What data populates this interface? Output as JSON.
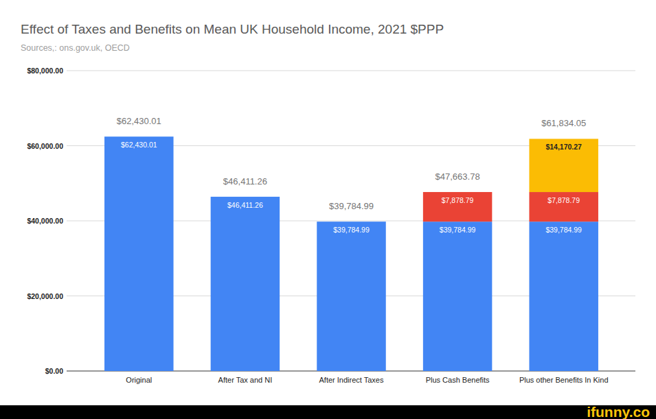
{
  "chart_data": {
    "type": "bar",
    "title": "Effect of Taxes and Benefits on Mean UK Household Income, 2021 $PPP",
    "subtitle": "Sources,: ons.gov.uk, OECD",
    "watermark": "ifunny.co",
    "categories": [
      "Original",
      "After Tax and NI",
      "After Indirect Taxes",
      "Plus Cash Benefits",
      "Plus other Benefits In Kind"
    ],
    "stacked": true,
    "data_labels": true,
    "grid": true,
    "series": [
      {
        "color": "#4285f4",
        "values": [
          62430.01,
          46411.26,
          39784.99,
          39784.99,
          39784.99
        ],
        "value_labels": [
          "$62,430.01",
          "$46,411.26",
          "$39,784.99",
          "$39,784.99",
          "$39,784.99"
        ]
      },
      {
        "color": "#ea4335",
        "values": [
          null,
          null,
          null,
          7878.79,
          7878.79
        ],
        "value_labels": [
          null,
          null,
          null,
          "$7,878.79",
          "$7,878.79"
        ]
      },
      {
        "color": "#fbbc04",
        "values": [
          null,
          null,
          null,
          null,
          14170.27
        ],
        "value_labels": [
          null,
          null,
          null,
          null,
          "$14,170.27"
        ]
      }
    ],
    "totals": [
      62430.01,
      46411.26,
      39784.99,
      47663.78,
      61834.05
    ],
    "total_labels": [
      "$62,430.01",
      "$46,411.26",
      "$39,784.99",
      "$47,663.78",
      "$61,834.05"
    ],
    "ylim": [
      0,
      80000
    ],
    "yticks": [
      {
        "value": 0,
        "label": "$0.00"
      },
      {
        "value": 20000,
        "label": "$20,000.00"
      },
      {
        "value": 40000,
        "label": "$40,000.00"
      },
      {
        "value": 60000,
        "label": "$60,000.00"
      },
      {
        "value": 80000,
        "label": "$80,000.00"
      }
    ]
  }
}
